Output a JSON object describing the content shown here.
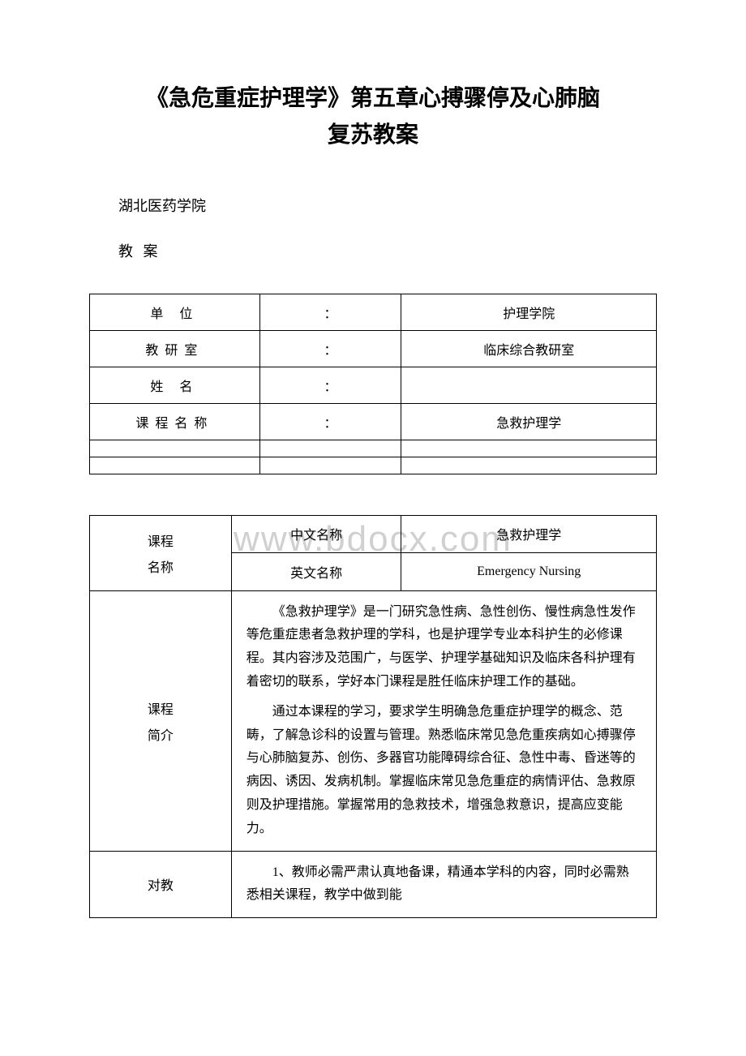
{
  "title": {
    "line1": "《急危重症护理学》第五章心搏骤停及心肺脑",
    "line2": "复苏教案"
  },
  "institution": "湖北医药学院",
  "lesson_plan_label": "教 案",
  "info_table": {
    "rows": [
      {
        "label": "单 位",
        "colon": "：",
        "value": "护理学院"
      },
      {
        "label": "教研室",
        "colon": "：",
        "value": "临床综合教研室"
      },
      {
        "label": "姓 名",
        "colon": "：",
        "value": ""
      },
      {
        "label": "课程名称",
        "colon": "：",
        "value": "急救护理学"
      }
    ]
  },
  "watermark": "www.bdocx.com",
  "course_table": {
    "course_label_1": "课程",
    "course_label_2": "名称",
    "chinese_name_label": "中文名称",
    "chinese_name_value": "急救护理学",
    "english_name_label": "英文名称",
    "english_name_value": "Emergency Nursing",
    "intro_label_1": "课程",
    "intro_label_2": "简介",
    "intro_para1": "《急救护理学》是一门研究急性病、急性创伤、慢性病急性发作等危重症患者急救护理的学科，也是护理学专业本科护生的必修课程。其内容涉及范围广，与医学、护理学基础知识及临床各科护理有着密切的联系，学好本门课程是胜任临床护理工作的基础。",
    "intro_para2": "通过本课程的学习，要求学生明确急危重症护理学的概念、范畴，了解急诊科的设置与管理。熟悉临床常见急危重疾病如心搏骤停与心肺脑复苏、创伤、多器官功能障碍综合征、急性中毒、昏迷等的病因、诱因、发病机制。掌握临床常见急危重症的病情评估、急救原则及护理措施。掌握常用的急救技术，增强急救意识，提高应变能力。",
    "teacher_req_label": "对教",
    "teacher_req_para1": "1、教师必需严肃认真地备课，精通本学科的内容，同时必需熟悉相关课程，教学中做到能"
  },
  "colors": {
    "background": "#ffffff",
    "text": "#000000",
    "border": "#000000",
    "watermark": "#d0d0d0"
  },
  "fonts": {
    "title_size": 28,
    "body_size": 16,
    "watermark_size": 44
  }
}
